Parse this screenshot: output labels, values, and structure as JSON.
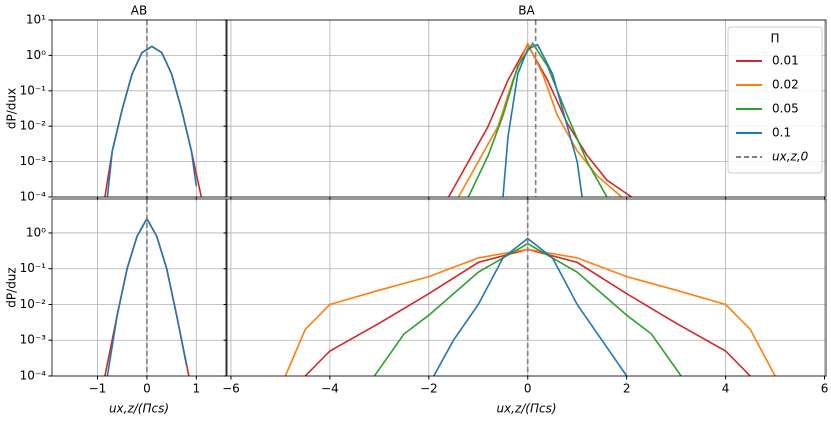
{
  "chart_data": [
    {
      "type": "line",
      "title": "AB",
      "ylabel": "dP/dux",
      "log_y": true,
      "grid": true,
      "xlim": [
        -1.92,
        1.6
      ],
      "xticks": [
        -1,
        0,
        1
      ],
      "ylim": [
        0.0001,
        10
      ],
      "yticks": [
        {
          "value": 0.0001,
          "label": "10⁻⁴"
        },
        {
          "value": 0.001,
          "label": "10⁻³"
        },
        {
          "value": 0.01,
          "label": "10⁻²"
        },
        {
          "value": 0.1,
          "label": "10⁻¹"
        },
        {
          "value": 1,
          "label": "10⁰"
        },
        {
          "value": 10,
          "label": "10¹"
        }
      ],
      "reference_line": {
        "x": 0,
        "color": "#7f7f7f"
      },
      "series": [
        {
          "color": "#d62728",
          "x": [
            -0.85,
            -0.7,
            -0.5,
            -0.3,
            -0.1,
            0.1,
            0.3,
            0.5,
            0.7,
            0.9,
            1.1
          ],
          "values": [
            0.0001,
            0.002,
            0.03,
            0.3,
            1.2,
            1.8,
            1.2,
            0.3,
            0.03,
            0.002,
            0.0001
          ]
        },
        {
          "color": "#1f77b4",
          "x": [
            -0.8,
            -0.7,
            -0.5,
            -0.3,
            -0.1,
            0.1,
            0.3,
            0.5,
            0.7,
            0.9,
            1.0
          ],
          "values": [
            0.0001,
            0.002,
            0.03,
            0.3,
            1.2,
            1.8,
            1.2,
            0.3,
            0.03,
            0.002,
            0.0002
          ]
        }
      ]
    },
    {
      "type": "line",
      "title": "BA",
      "log_y": true,
      "grid": true,
      "legend": true,
      "legend_title": "Π",
      "xlim": [
        -6.08,
        6.03
      ],
      "xticks": [
        -6,
        -4,
        -2,
        0,
        2,
        4,
        6
      ],
      "ylim": [
        0.0001,
        10
      ],
      "yticks": [
        0.0001,
        0.001,
        0.01,
        0.1,
        1,
        10
      ],
      "reference_line": {
        "name": "ux,z,0",
        "x": 0.16,
        "color": "#7f7f7f"
      },
      "series": [
        {
          "name": "0.01",
          "color": "#d62728",
          "x": [
            -1.6,
            -1.2,
            -0.8,
            -0.4,
            0,
            0.4,
            0.8,
            1.2,
            1.6,
            2.1
          ],
          "values": [
            0.0001,
            0.001,
            0.01,
            0.2,
            2,
            0.2,
            0.012,
            0.0015,
            0.0003,
            0.0001
          ]
        },
        {
          "name": "0.02",
          "color": "#ff7f0e",
          "x": [
            -1.4,
            -1,
            -0.6,
            -0.3,
            0,
            0.3,
            0.6,
            1,
            1.4,
            1.9
          ],
          "values": [
            0.0001,
            0.001,
            0.01,
            0.2,
            2.2,
            0.3,
            0.02,
            0.002,
            0.0004,
            0.0001
          ]
        },
        {
          "name": "0.05",
          "color": "#2ca02c",
          "x": [
            -1.2,
            -0.8,
            -0.5,
            -0.2,
            0.1,
            0.4,
            0.8,
            1.2,
            1.6
          ],
          "values": [
            0.0001,
            0.0015,
            0.02,
            0.5,
            2.2,
            0.5,
            0.02,
            0.001,
            0.0001
          ]
        },
        {
          "name": "0.1",
          "color": "#1f77b4",
          "x": [
            -0.5,
            -0.4,
            -0.2,
            0,
            0.2,
            0.5,
            0.8,
            1.0,
            1.1
          ],
          "values": [
            0.0001,
            0.005,
            0.3,
            1.5,
            2,
            0.3,
            0.01,
            0.001,
            0.0001
          ]
        }
      ]
    },
    {
      "type": "line",
      "ylabel": "dP/duz",
      "xlabel": "ux,z/(Πcs)",
      "log_y": true,
      "grid": true,
      "xlim": [
        -1.92,
        1.6
      ],
      "xticks": [
        {
          "value": -1,
          "label": "−1"
        },
        0,
        1
      ],
      "ylim": [
        0.0001,
        8.9
      ],
      "yticks": [
        {
          "value": 0.0001,
          "label": "10⁻⁴"
        },
        {
          "value": 0.001,
          "label": "10⁻³"
        },
        {
          "value": 0.01,
          "label": "10⁻²"
        },
        {
          "value": 0.1,
          "label": "10⁻¹"
        },
        {
          "value": 1,
          "label": "10⁰"
        }
      ],
      "reference_line": {
        "x": 0,
        "color": "#7f7f7f"
      },
      "series": [
        {
          "color": "#d62728",
          "x": [
            -0.85,
            -0.6,
            -0.4,
            -0.2,
            0,
            0.2,
            0.4,
            0.6,
            0.85
          ],
          "values": [
            0.0001,
            0.005,
            0.1,
            0.8,
            2.5,
            0.8,
            0.1,
            0.005,
            0.0001
          ]
        },
        {
          "color": "#1f77b4",
          "x": [
            -0.8,
            -0.6,
            -0.4,
            -0.2,
            0,
            0.2,
            0.4,
            0.6,
            0.8
          ],
          "values": [
            0.0001,
            0.005,
            0.1,
            0.8,
            2.5,
            0.8,
            0.1,
            0.005,
            0.0002
          ]
        }
      ]
    },
    {
      "type": "line",
      "xlabel": "ux,z/(Πcs)",
      "log_y": true,
      "grid": true,
      "xlim": [
        -6.08,
        6.03
      ],
      "xticks": [
        {
          "value": -6,
          "label": "−6"
        },
        {
          "value": -4,
          "label": "−4"
        },
        {
          "value": -2,
          "label": "−2"
        },
        0,
        2,
        4,
        6
      ],
      "ylim": [
        0.0001,
        8.9
      ],
      "yticks": [
        0.0001,
        0.001,
        0.01,
        0.1,
        1
      ],
      "reference_line": {
        "x": 0,
        "color": "#7f7f7f"
      },
      "series": [
        {
          "color": "#d62728",
          "x": [
            -4.5,
            -4,
            -3,
            -2,
            -1,
            0,
            1,
            2,
            3,
            4,
            4.5
          ],
          "values": [
            0.0001,
            0.0005,
            0.003,
            0.02,
            0.15,
            0.35,
            0.15,
            0.02,
            0.003,
            0.0005,
            0.0001
          ]
        },
        {
          "color": "#ff7f0e",
          "x": [
            -4.9,
            -4.5,
            -4,
            -3,
            -2,
            -1,
            0,
            1,
            2,
            3,
            4,
            4.5,
            5
          ],
          "values": [
            0.0001,
            0.002,
            0.01,
            0.025,
            0.06,
            0.2,
            0.35,
            0.2,
            0.06,
            0.025,
            0.01,
            0.002,
            0.0001
          ]
        },
        {
          "color": "#2ca02c",
          "x": [
            -3.1,
            -2.5,
            -2,
            -1,
            0,
            1,
            2,
            2.5,
            3.1
          ],
          "values": [
            0.0001,
            0.0015,
            0.005,
            0.08,
            0.5,
            0.08,
            0.005,
            0.0015,
            0.0001
          ]
        },
        {
          "color": "#1f77b4",
          "x": [
            -1.9,
            -1.5,
            -1,
            -0.5,
            0,
            0.5,
            1,
            1.5,
            2
          ],
          "values": [
            0.0001,
            0.001,
            0.01,
            0.2,
            0.7,
            0.2,
            0.01,
            0.001,
            0.0001
          ]
        }
      ]
    }
  ]
}
